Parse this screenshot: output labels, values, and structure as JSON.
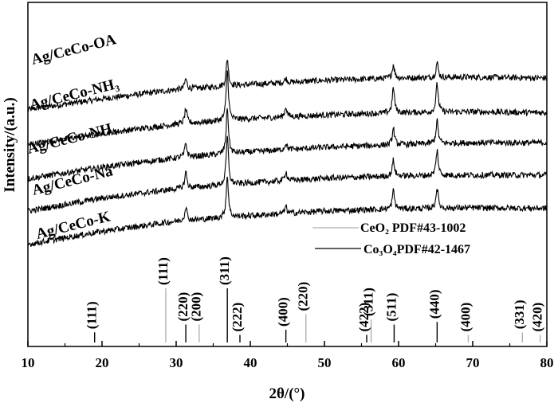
{
  "chart_data": {
    "type": "line",
    "xlabel": "2θ/(°)",
    "ylabel": "Intensity/(a.u.)",
    "xlim": [
      10,
      80
    ],
    "xticks": [
      10,
      20,
      30,
      40,
      50,
      60,
      70,
      80
    ],
    "grid": false,
    "series": [
      {
        "name": "Ag/CeCo-OA",
        "baseline": [
          [
            10,
            3.32
          ],
          [
            20,
            3.55
          ],
          [
            30,
            3.75
          ],
          [
            40,
            3.86
          ],
          [
            50,
            3.95
          ],
          [
            60,
            4.0
          ],
          [
            70,
            4.02
          ],
          [
            80,
            4.0
          ]
        ],
        "peaks": [
          [
            31.3,
            0.22
          ],
          [
            36.9,
            0.6
          ],
          [
            44.8,
            0.09
          ],
          [
            59.3,
            0.3
          ],
          [
            65.2,
            0.33
          ]
        ]
      },
      {
        "name": "Ag/CeCo-NH₃",
        "baseline": [
          [
            10,
            2.56
          ],
          [
            20,
            2.8
          ],
          [
            30,
            3.0
          ],
          [
            40,
            3.12
          ],
          [
            50,
            3.2
          ],
          [
            60,
            3.25
          ],
          [
            70,
            3.27
          ],
          [
            80,
            3.25
          ]
        ],
        "peaks": [
          [
            31.3,
            0.32
          ],
          [
            36.9,
            1.1
          ],
          [
            44.8,
            0.22
          ],
          [
            59.3,
            0.55
          ],
          [
            65.2,
            0.62
          ]
        ]
      },
      {
        "name": "Ag/CeCo-NH₄",
        "baseline": [
          [
            10,
            1.82
          ],
          [
            20,
            2.07
          ],
          [
            30,
            2.27
          ],
          [
            40,
            2.4
          ],
          [
            50,
            2.5
          ],
          [
            60,
            2.56
          ],
          [
            70,
            2.6
          ],
          [
            80,
            2.6
          ]
        ],
        "peaks": [
          [
            31.3,
            0.3
          ],
          [
            36.9,
            1.0
          ],
          [
            44.8,
            0.14
          ],
          [
            59.3,
            0.35
          ],
          [
            65.2,
            0.5
          ]
        ]
      },
      {
        "name": "Ag/CeCo-Na",
        "baseline": [
          [
            10,
            1.12
          ],
          [
            20,
            1.4
          ],
          [
            30,
            1.6
          ],
          [
            40,
            1.73
          ],
          [
            50,
            1.83
          ],
          [
            60,
            1.88
          ],
          [
            70,
            1.9
          ],
          [
            80,
            1.9
          ]
        ],
        "peaks": [
          [
            31.3,
            0.35
          ],
          [
            36.9,
            1.05
          ],
          [
            44.8,
            0.2
          ],
          [
            59.3,
            0.35
          ],
          [
            65.2,
            0.55
          ]
        ]
      },
      {
        "name": "Ag/CeCo-K",
        "baseline": [
          [
            10,
            0.4
          ],
          [
            20,
            0.68
          ],
          [
            30,
            0.9
          ],
          [
            40,
            1.02
          ],
          [
            50,
            1.12
          ],
          [
            60,
            1.17
          ],
          [
            70,
            1.19
          ],
          [
            80,
            1.18
          ]
        ],
        "peaks": [
          [
            31.3,
            0.3
          ],
          [
            36.9,
            0.9
          ],
          [
            44.8,
            0.15
          ],
          [
            59.3,
            0.4
          ],
          [
            65.2,
            0.45
          ]
        ]
      }
    ],
    "reference": {
      "legend": [
        {
          "label": "CeO₂ PDF#43-1002",
          "color": "#b0b0b0"
        },
        {
          "label": "Co₃O₄PDF#42-1467",
          "color": "#000000"
        }
      ],
      "ceo2": [
        {
          "x": 28.6,
          "h": 1.0,
          "label": "(111)"
        },
        {
          "x": 33.1,
          "h": 0.3,
          "label": "(200)"
        },
        {
          "x": 47.5,
          "h": 0.5,
          "label": "(220)"
        },
        {
          "x": 56.3,
          "h": 0.4,
          "label": "(311)"
        },
        {
          "x": 69.4,
          "h": 0.1,
          "label": "(400)"
        },
        {
          "x": 76.7,
          "h": 0.15,
          "label": "(331)"
        },
        {
          "x": 79.1,
          "h": 0.1,
          "label": "(420)"
        }
      ],
      "co3o4": [
        {
          "x": 19.0,
          "h": 0.15,
          "label": "(111)"
        },
        {
          "x": 31.3,
          "h": 0.3,
          "label": "(220)"
        },
        {
          "x": 36.9,
          "h": 1.0,
          "label": "(311)"
        },
        {
          "x": 38.6,
          "h": 0.1,
          "label": "(222)"
        },
        {
          "x": 44.8,
          "h": 0.2,
          "label": "(400)"
        },
        {
          "x": 55.7,
          "h": 0.1,
          "label": "(422)"
        },
        {
          "x": 59.4,
          "h": 0.3,
          "label": "(511)"
        },
        {
          "x": 65.2,
          "h": 0.35,
          "label": "(440)"
        }
      ]
    }
  }
}
